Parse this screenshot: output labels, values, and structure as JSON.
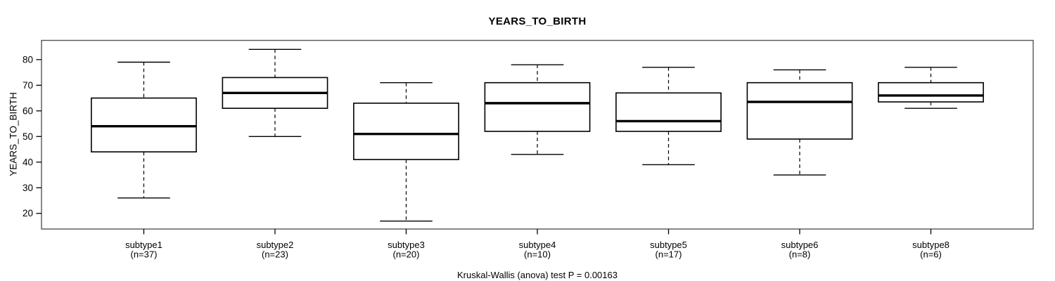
{
  "title": "YEARS_TO_BIRTH",
  "y_axis": {
    "label": "YEARS_TO_BIRTH"
  },
  "footer": {
    "annotation": "Kruskal-Wallis (anova) test P = 0.00163",
    "p_value": "0.00163"
  },
  "colors": {
    "line": "#000000",
    "frame": "#555555",
    "background": "#ffffff",
    "box_fill": "#ffffff"
  },
  "chart_data": {
    "type": "boxplot",
    "title": "YEARS_TO_BIRTH",
    "xlabel": "",
    "ylabel": "YEARS_TO_BIRTH",
    "ylim": [
      13.9,
      87.5
    ],
    "yticks": [
      20,
      30,
      40,
      50,
      60,
      70,
      80
    ],
    "grid": false,
    "annotation": "Kruskal-Wallis (anova) test P = 0.00163",
    "groups": [
      {
        "label": "subtype1",
        "n_label": "(n=37)",
        "n": 37,
        "whisker_low": 26,
        "q1": 44,
        "median": 54,
        "q3": 65,
        "whisker_high": 79
      },
      {
        "label": "subtype2",
        "n_label": "(n=23)",
        "n": 23,
        "whisker_low": 50,
        "q1": 61,
        "median": 67,
        "q3": 73,
        "whisker_high": 84
      },
      {
        "label": "subtype3",
        "n_label": "(n=20)",
        "n": 20,
        "whisker_low": 17,
        "q1": 41,
        "median": 51,
        "q3": 63,
        "whisker_high": 71
      },
      {
        "label": "subtype4",
        "n_label": "(n=10)",
        "n": 10,
        "whisker_low": 43,
        "q1": 52,
        "median": 63,
        "q3": 71,
        "whisker_high": 78
      },
      {
        "label": "subtype5",
        "n_label": "(n=17)",
        "n": 17,
        "whisker_low": 39,
        "q1": 52,
        "median": 56,
        "q3": 67,
        "whisker_high": 77
      },
      {
        "label": "subtype6",
        "n_label": "(n=8)",
        "n": 8,
        "whisker_low": 35,
        "q1": 49,
        "median": 63.5,
        "q3": 71,
        "whisker_high": 76
      },
      {
        "label": "subtype8",
        "n_label": "(n=6)",
        "n": 6,
        "whisker_low": 61,
        "q1": 63.5,
        "median": 66,
        "q3": 71,
        "whisker_high": 77
      }
    ]
  }
}
